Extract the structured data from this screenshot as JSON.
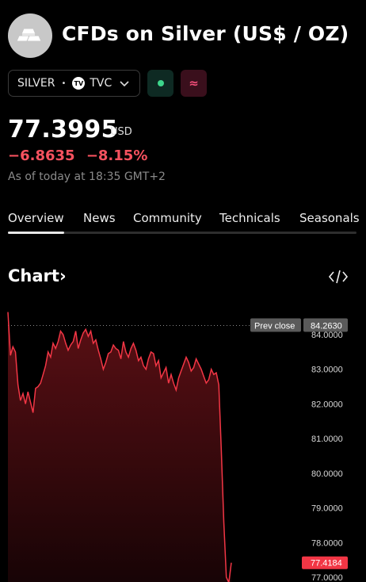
{
  "header": {
    "title": "CFDs on Silver (US$ / OZ)",
    "logo_icon": "silver-bars-icon"
  },
  "symbol": {
    "ticker": "SILVER",
    "separator": "•",
    "exchange_logo": "TV",
    "exchange": "TVC",
    "market_open_color": "#3dd68c",
    "extended_icon": "≈"
  },
  "quote": {
    "price": "77.3995",
    "currency": "USD",
    "change": "−6.8635",
    "change_pct": "−8.15%",
    "as_of": "As of today at 18:35 GMT+2",
    "down_color": "#f7525f"
  },
  "tabs": [
    {
      "label": "Overview",
      "active": true
    },
    {
      "label": "News"
    },
    {
      "label": "Community"
    },
    {
      "label": "Technicals"
    },
    {
      "label": "Seasonals"
    }
  ],
  "chart_section": {
    "title": "Chart",
    "chevron": "›",
    "embed_icon": "code-embed-icon"
  },
  "chart_data": {
    "type": "area",
    "prev_close_label": "Prev close",
    "prev_close": 84.263,
    "last_price": 77.4184,
    "last_price_label": "77.4184",
    "prev_close_value_label": "84.2630",
    "y_ticks": [
      "84.0000",
      "83.0000",
      "82.0000",
      "81.0000",
      "80.0000",
      "79.0000",
      "78.0000",
      "77.0000"
    ],
    "y_tick_values": [
      84,
      83,
      82,
      81,
      80,
      79,
      78,
      77
    ],
    "ylim": [
      76.8,
      84.5
    ],
    "series": [
      {
        "color": "#f23645",
        "values": [
          84.65,
          83.4,
          83.65,
          83.5,
          82.55,
          82.1,
          82.3,
          82.0,
          82.35,
          82.05,
          81.75,
          82.45,
          82.5,
          82.6,
          82.85,
          83.1,
          83.5,
          83.35,
          83.75,
          83.6,
          83.8,
          84.1,
          84.0,
          83.75,
          83.55,
          83.7,
          83.8,
          84.1,
          83.6,
          83.85,
          84.05,
          84.15,
          83.95,
          84.1,
          83.75,
          83.85,
          83.55,
          83.3,
          83.0,
          83.2,
          83.45,
          83.5,
          83.7,
          83.6,
          83.55,
          83.3,
          83.8,
          83.5,
          83.35,
          83.6,
          83.75,
          83.55,
          83.25,
          83.35,
          83.1,
          83.0,
          83.3,
          83.5,
          83.45,
          83.1,
          83.25,
          82.75,
          82.9,
          83.05,
          82.6,
          82.85,
          82.6,
          82.4,
          82.75,
          82.95,
          83.15,
          83.35,
          83.2,
          82.95,
          83.05,
          83.3,
          83.15,
          83.0,
          82.8,
          82.6,
          82.7,
          83.0,
          82.85,
          82.9,
          82.55,
          80.7,
          78.6,
          77.0,
          76.85,
          77.4184
        ]
      }
    ]
  }
}
